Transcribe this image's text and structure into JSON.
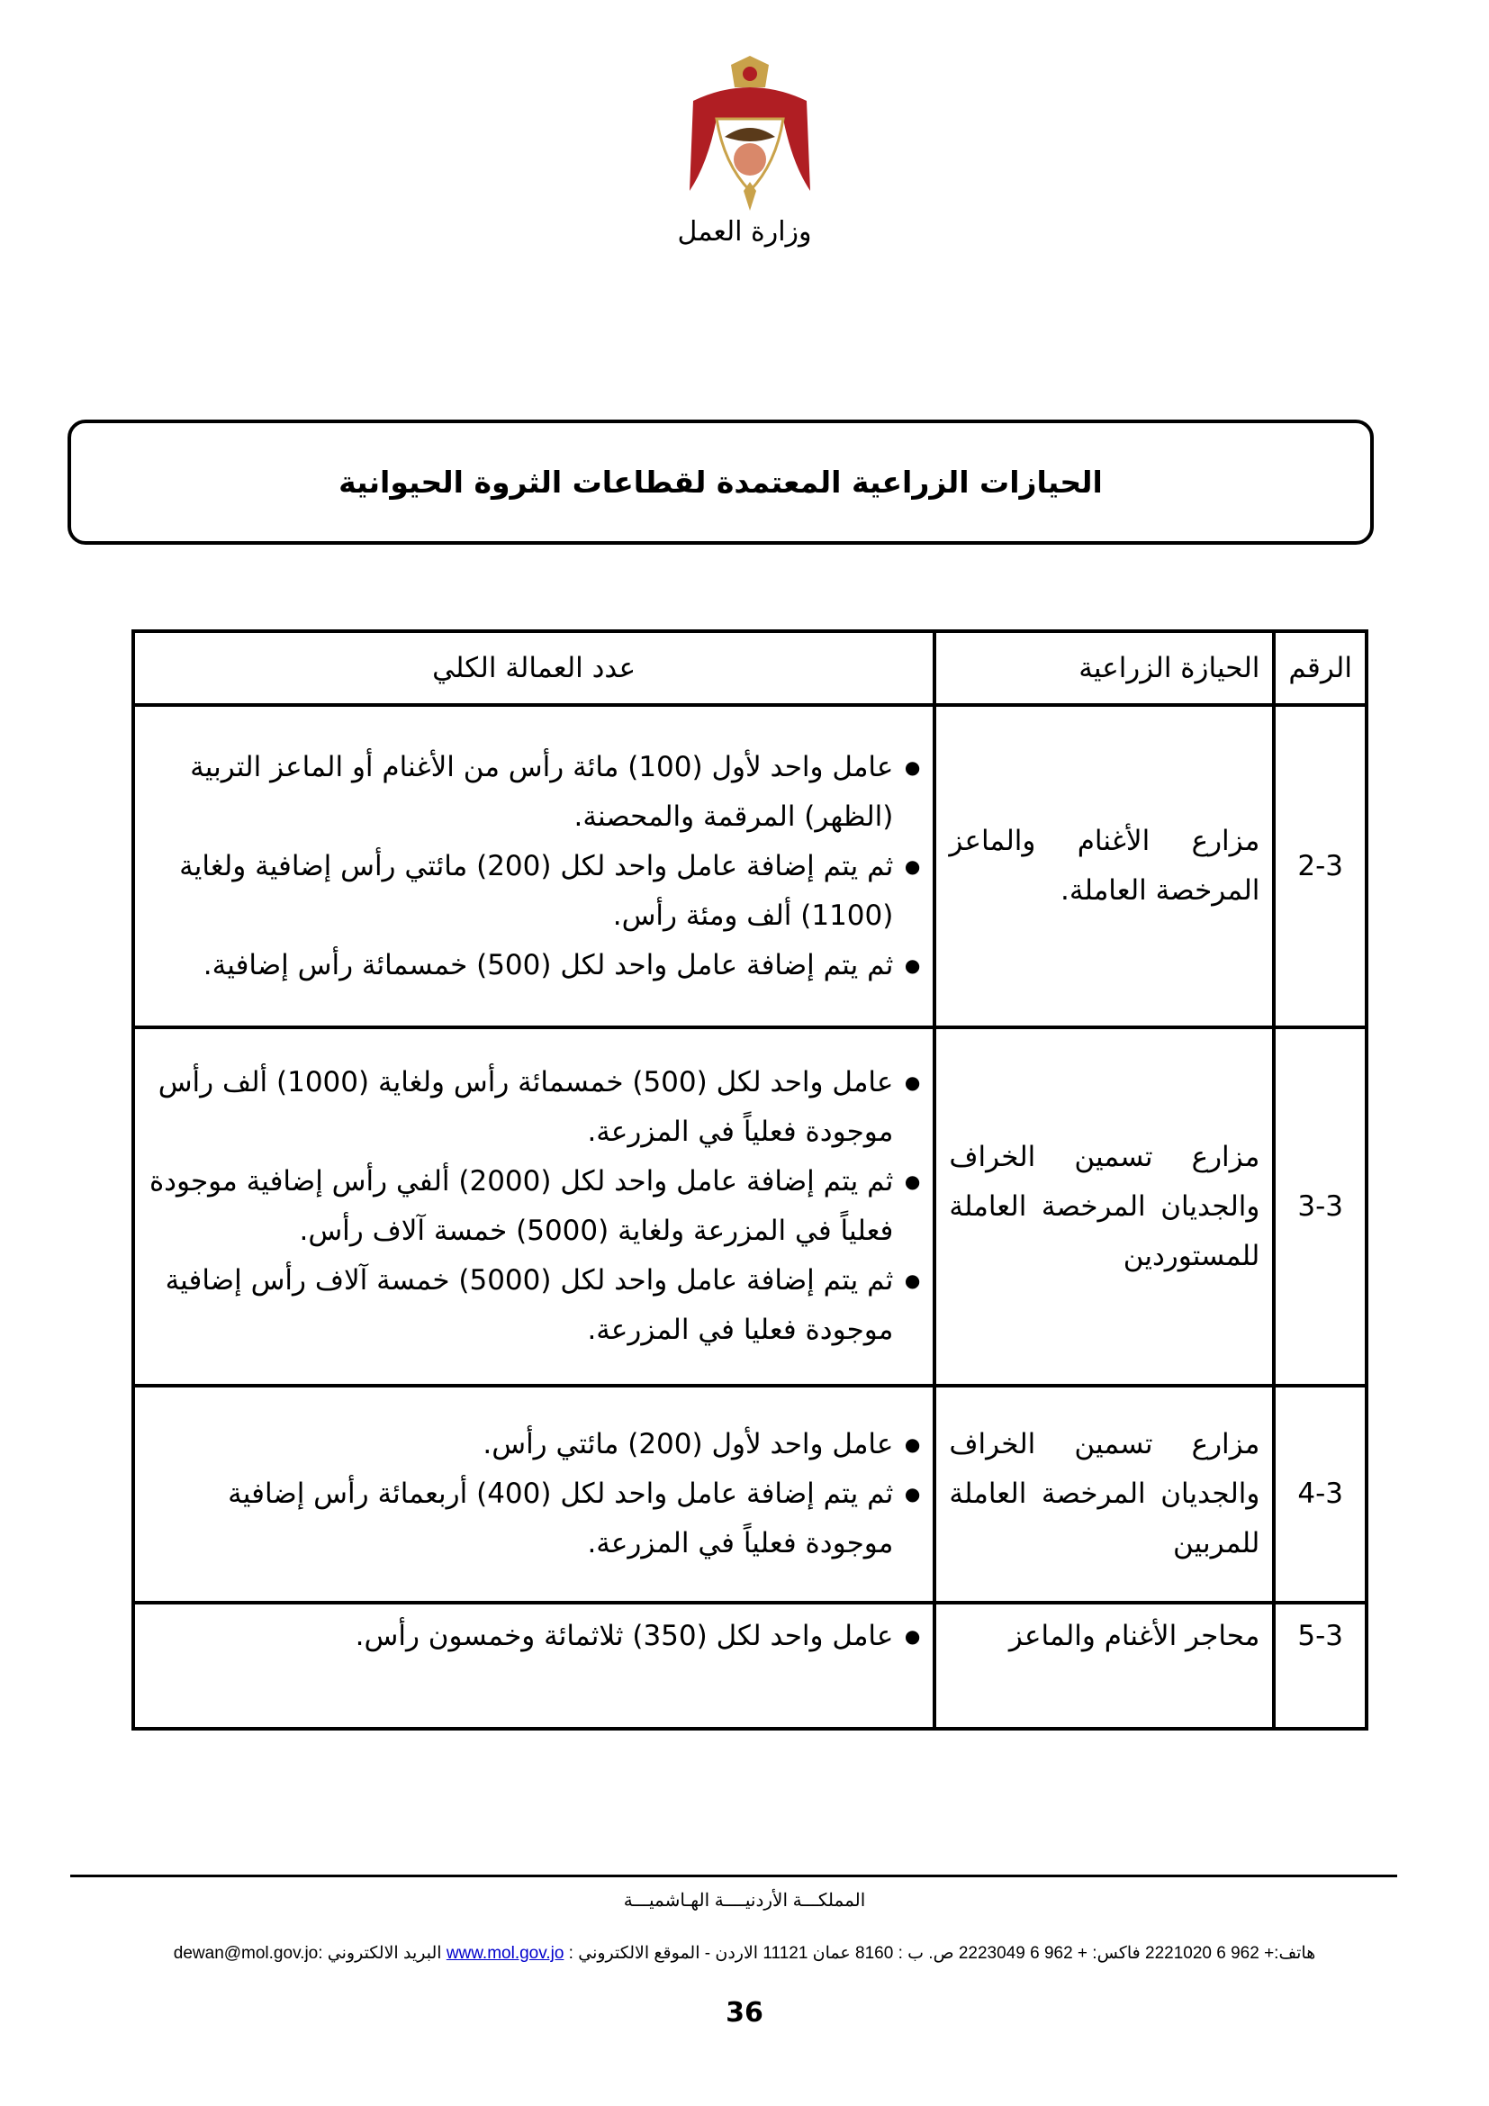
{
  "header": {
    "ministry": "وزارة العمل"
  },
  "title": "الحيازات الزراعية المعتمدة لقطاعات الثروة الحيوانية",
  "table": {
    "headers": {
      "number": "الرقم",
      "holding": "الحيازة الزراعية",
      "workers": "عدد العمالة الكلي"
    },
    "rows": [
      {
        "number": "2-3",
        "holding": "مزارع الأغنام والماعز المرخصة العاملة.",
        "bullets": [
          "عامل واحد لأول (100) مائة رأس من الأغنام أو الماعز التربية (الظهر) المرقمة والمحصنة.",
          "ثم يتم إضافة عامل واحد لكل (200) مائتي رأس إضافية ولغاية (1100) ألف ومئة رأس.",
          "ثم يتم إضافة عامل واحد لكل (500) خمسمائة رأس إضافية."
        ]
      },
      {
        "number": "3-3",
        "holding": "مزارع تسمين الخراف والجديان المرخصة العاملة للمستوردين",
        "bullets": [
          "عامل واحد لكل (500) خمسمائة رأس ولغاية (1000) ألف رأس موجودة فعلياً في المزرعة.",
          "ثم يتم إضافة عامل واحد لكل (2000) ألفي رأس إضافية موجودة فعلياً في المزرعة ولغاية (5000) خمسة آلاف رأس.",
          "ثم يتم إضافة عامل واحد لكل (5000) خمسة آلاف رأس إضافية موجودة فعليا في المزرعة."
        ]
      },
      {
        "number": "4-3",
        "holding": "مزارع تسمين الخراف والجديان المرخصة العاملة للمربين",
        "bullets": [
          "عامل واحد لأول (200) مائتي رأس.",
          "ثم يتم إضافة عامل واحد لكل (400) أربعمائة رأس إضافية موجودة فعلياً في المزرعة."
        ]
      },
      {
        "number": "5-3",
        "holding": "محاجر الأغنام والماعز",
        "bullets": [
          "عامل واحد لكل (350) ثلاثمائة وخمسون رأس."
        ]
      }
    ]
  },
  "footer": {
    "country": "المملكـــة الأردنيــــة الهـاشميـــة",
    "contact_pre": "هاتف:+ 962 6 2221020   فاكس: + 962 6 2223049 ص. ب : 8160 عمان 11121 الاردن - الموقع الالكتروني : ",
    "website": "www.mol.gov.jo",
    "contact_post": " البريد الالكتروني :dewan@mol.gov.jo",
    "page_number": "36"
  },
  "colors": {
    "link": "#0000cc"
  }
}
